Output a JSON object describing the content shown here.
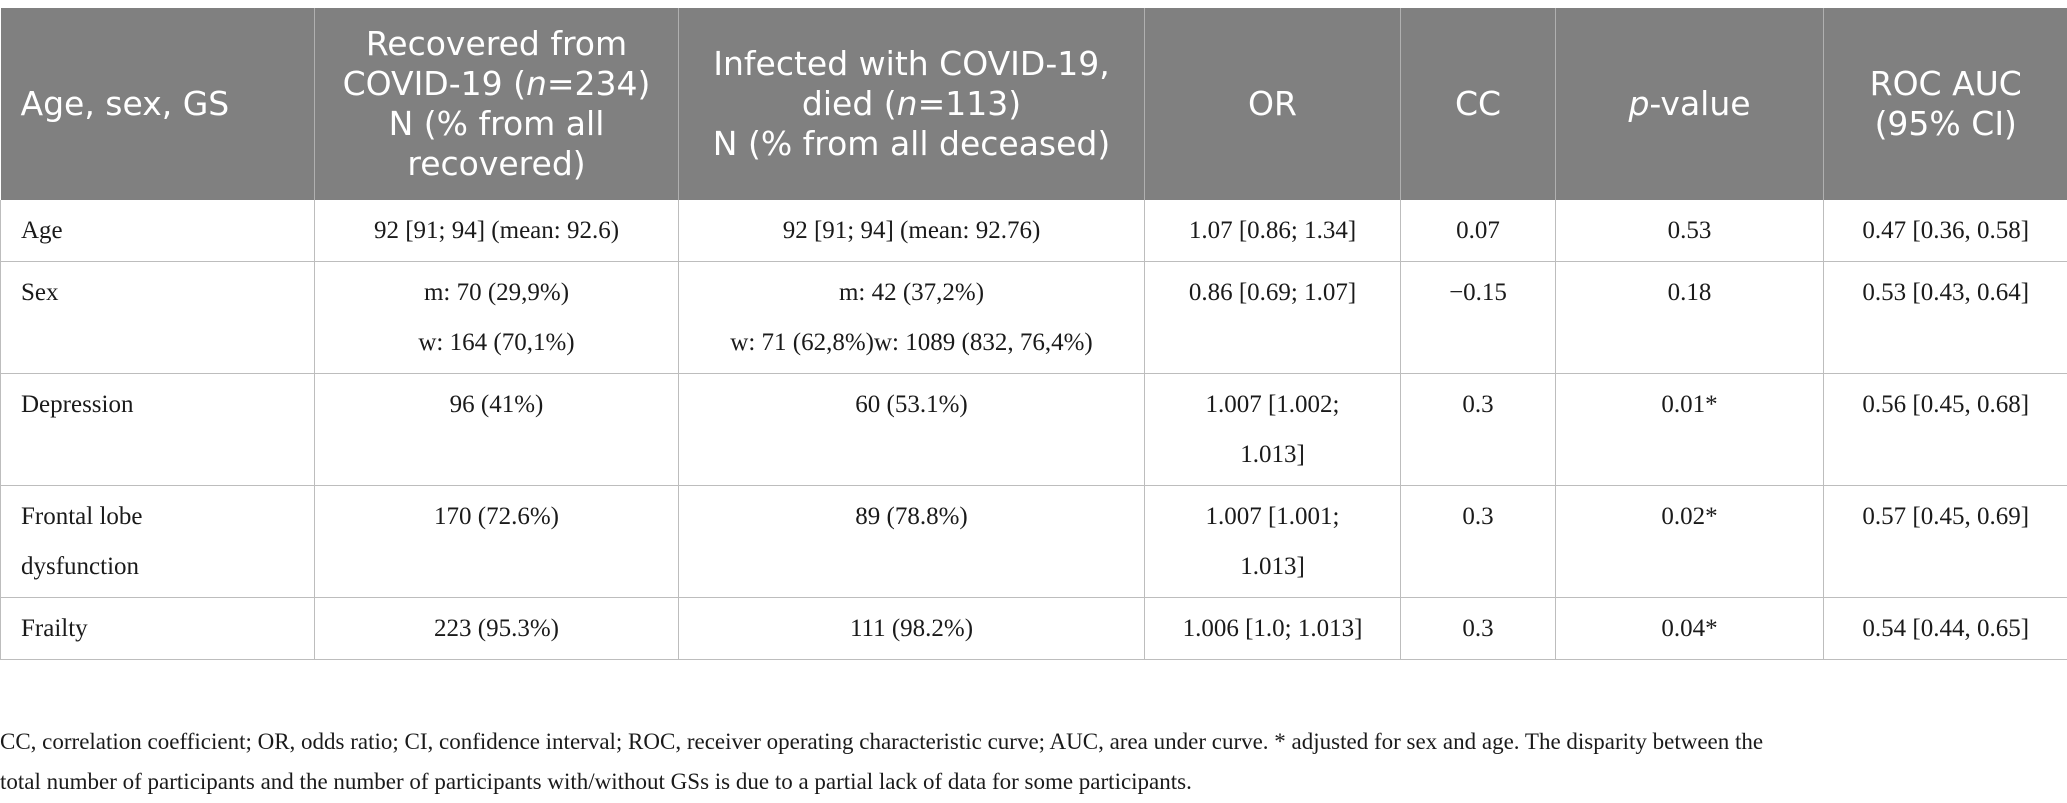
{
  "table": {
    "headers": [
      {
        "text": "Age, sex, GS"
      },
      {
        "lines": [
          "Recovered from",
          "COVID-19 (",
          "n",
          "=234)",
          "N (% from all",
          "recovered)"
        ]
      },
      {
        "lines": [
          "Infected with COVID-19,",
          "died (",
          "n",
          "=113)",
          "N (% from all deceased)"
        ]
      },
      {
        "text": "OR"
      },
      {
        "text": "CC"
      },
      {
        "italic": "p",
        "rest": "-value"
      },
      {
        "lines": [
          "ROC AUC",
          "(95% CI)"
        ]
      }
    ],
    "rows": [
      {
        "label": [
          "Age"
        ],
        "recovered": [
          "92 [91; 94] (mean: 92.6)"
        ],
        "died": [
          "92 [91; 94] (mean: 92.76)"
        ],
        "or": [
          "1.07 [0.86; 1.34]"
        ],
        "cc": "0.07",
        "p": "0.53",
        "roc": "0.47 [0.36, 0.58]"
      },
      {
        "label": [
          "Sex"
        ],
        "recovered": [
          "m: 70 (29,9%)",
          "w: 164 (70,1%)"
        ],
        "died": [
          "m: 42 (37,2%)",
          "w: 71 (62,8%)w: 1089 (832, 76,4%)"
        ],
        "or": [
          "0.86 [0.69; 1.07]"
        ],
        "cc": "−0.15",
        "p": "0.18",
        "roc": "0.53 [0.43, 0.64]"
      },
      {
        "label": [
          "Depression"
        ],
        "recovered": [
          "96 (41%)"
        ],
        "died": [
          "60 (53.1%)"
        ],
        "or": [
          "1.007 [1.002;",
          "1.013]"
        ],
        "cc": "0.3",
        "p": "0.01*",
        "roc": "0.56 [0.45, 0.68]"
      },
      {
        "label": [
          "Frontal lobe",
          "dysfunction"
        ],
        "recovered": [
          "170 (72.6%)"
        ],
        "died": [
          "89 (78.8%)"
        ],
        "or": [
          "1.007 [1.001;",
          "1.013]"
        ],
        "cc": "0.3",
        "p": "0.02*",
        "roc": "0.57 [0.45, 0.69]"
      },
      {
        "label": [
          "Frailty"
        ],
        "recovered": [
          "223 (95.3%)"
        ],
        "died": [
          "111 (98.2%)"
        ],
        "or": [
          "1.006 [1.0; 1.013]"
        ],
        "cc": "0.3",
        "p": "0.04*",
        "roc": "0.54 [0.44, 0.65]"
      }
    ]
  },
  "footnote": {
    "lines": [
      "CC, correlation coefficient; OR, odds ratio; CI, confidence interval; ROC, receiver operating characteristic curve; AUC, area under curve. * adjusted for sex and age. The disparity between the",
      "total number of participants and the number of participants with/without GSs is due to a partial lack of data for some participants."
    ]
  }
}
